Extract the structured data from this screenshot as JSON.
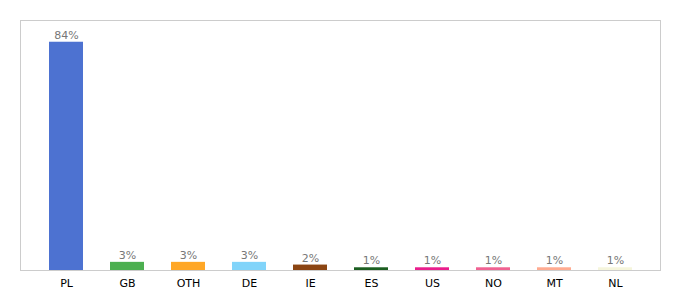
{
  "chart_data": {
    "type": "bar",
    "categories": [
      "PL",
      "GB",
      "OTH",
      "DE",
      "IE",
      "ES",
      "US",
      "NO",
      "MT",
      "NL"
    ],
    "values": [
      84,
      3,
      3,
      3,
      2,
      1,
      1,
      1,
      1,
      1
    ],
    "value_labels": [
      "84%",
      "3%",
      "3%",
      "3%",
      "2%",
      "1%",
      "1%",
      "1%",
      "1%",
      "1%"
    ],
    "colors": [
      "#4d72d1",
      "#4caf50",
      "#ffa726",
      "#81d4fa",
      "#8B4513",
      "#1b5e20",
      "#e91e8c",
      "#f06292",
      "#ffab91",
      "#f5f5dc"
    ],
    "ylim": [
      0,
      92
    ],
    "data_labels": true,
    "tick_labels": "x",
    "grid": false
  }
}
